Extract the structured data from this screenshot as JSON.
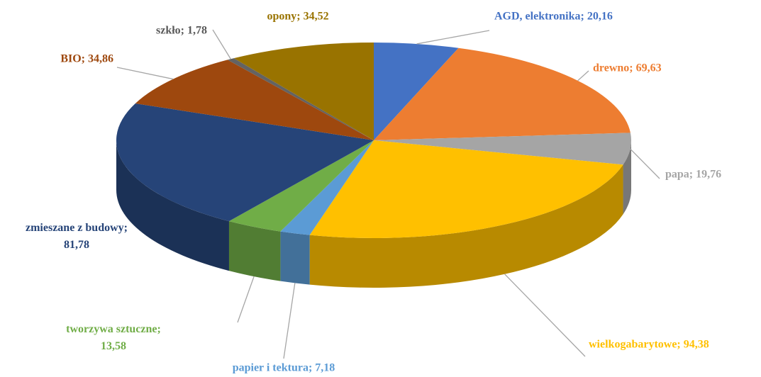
{
  "chart_data": {
    "type": "pie3d",
    "values": [
      20.16,
      69.63,
      19.76,
      94.38,
      7.18,
      13.58,
      81.78,
      34.86,
      1.78,
      34.52
    ],
    "value_labels": [
      "AGD, elektronika; 20,16",
      "drewno; 69,63",
      "papa; 19,76",
      "wielkogabarytowe; 94,38",
      "papier i tektura; 7,18",
      "tworzywa sztuczne; 13,58",
      "zmieszane z budowy; 81,78",
      "BIO; 34,86",
      "szkło; 1,78",
      "opony; 34,52"
    ],
    "colors": [
      "#4472c4",
      "#ed7d31",
      "#a5a5a5",
      "#ffc000",
      "#5b9bd5",
      "#70ad47",
      "#264478",
      "#9e480e",
      "#636363",
      "#997300"
    ]
  }
}
